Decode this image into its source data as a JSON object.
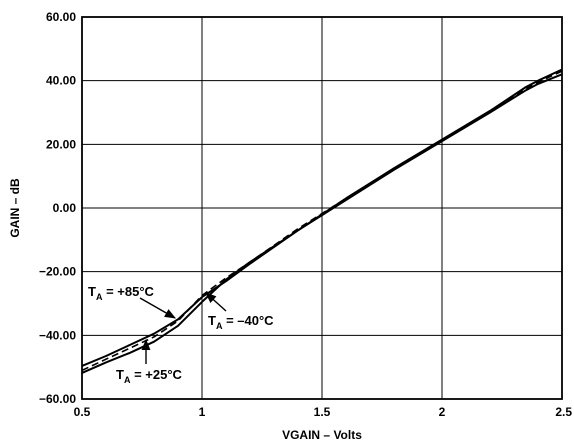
{
  "chart_data": {
    "type": "line",
    "title": "",
    "xlabel": "VGAIN – Volts",
    "ylabel": "GAIN – dB",
    "xlim": [
      0.5,
      2.5
    ],
    "ylim": [
      -60,
      60
    ],
    "grid": true,
    "xticks": [
      {
        "value": 0.5,
        "label": "0.5"
      },
      {
        "value": 1,
        "label": "1"
      },
      {
        "value": 1.5,
        "label": "1.5"
      },
      {
        "value": 2,
        "label": "2"
      },
      {
        "value": 2.5,
        "label": "2.5"
      }
    ],
    "yticks": [
      {
        "value": 60,
        "label": "60.00"
      },
      {
        "value": 40,
        "label": "40.00"
      },
      {
        "value": 20,
        "label": "20.00"
      },
      {
        "value": 0,
        "label": "0.00"
      },
      {
        "value": -20,
        "label": "−20.00"
      },
      {
        "value": -40,
        "label": "−40.00"
      },
      {
        "value": -60,
        "label": "−60.00"
      }
    ],
    "series": [
      {
        "style": "solid",
        "points": [
          [
            0.5,
            -49.6
          ],
          [
            0.6,
            -46.5
          ],
          [
            0.7,
            -43
          ],
          [
            0.8,
            -39.5
          ],
          [
            0.9,
            -35
          ],
          [
            1.0,
            -28
          ],
          [
            1.1,
            -23
          ],
          [
            1.2,
            -17.5
          ],
          [
            1.4,
            -7
          ],
          [
            1.6,
            3
          ],
          [
            1.8,
            12.5
          ],
          [
            2.0,
            21.5
          ],
          [
            2.2,
            30.5
          ],
          [
            2.35,
            38
          ],
          [
            2.4,
            40
          ],
          [
            2.5,
            43.5
          ]
        ]
      },
      {
        "style": "dashed",
        "points": [
          [
            0.5,
            -51
          ],
          [
            0.6,
            -47.5
          ],
          [
            0.7,
            -44
          ],
          [
            0.8,
            -40.5
          ],
          [
            0.9,
            -35.5
          ],
          [
            1.0,
            -27.5
          ],
          [
            1.1,
            -22
          ],
          [
            1.2,
            -17
          ],
          [
            1.4,
            -6.5
          ],
          [
            1.6,
            3
          ],
          [
            1.8,
            12
          ],
          [
            2.0,
            21
          ],
          [
            2.2,
            30
          ],
          [
            2.35,
            37.5
          ],
          [
            2.4,
            39.5
          ],
          [
            2.5,
            43
          ]
        ]
      },
      {
        "style": "solid",
        "points": [
          [
            0.5,
            -51.8
          ],
          [
            0.6,
            -48.5
          ],
          [
            0.7,
            -45.5
          ],
          [
            0.8,
            -42
          ],
          [
            0.9,
            -37
          ],
          [
            1.0,
            -29.5
          ],
          [
            1.1,
            -22.5
          ],
          [
            1.2,
            -17
          ],
          [
            1.4,
            -7
          ],
          [
            1.6,
            2.5
          ],
          [
            1.8,
            12
          ],
          [
            2.0,
            21
          ],
          [
            2.2,
            30
          ],
          [
            2.35,
            37
          ],
          [
            2.4,
            39
          ],
          [
            2.5,
            42
          ]
        ]
      }
    ],
    "annotations": [
      {
        "main": "T",
        "sub": "A",
        "rest": " = +85°C"
      },
      {
        "main": "T",
        "sub": "A",
        "rest": " = –40°C"
      },
      {
        "main": "T",
        "sub": "A",
        "rest": " = +25°C"
      }
    ]
  }
}
